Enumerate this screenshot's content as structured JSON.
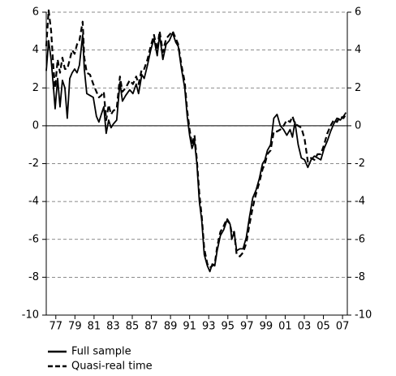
{
  "chart_data": {
    "type": "line",
    "x": [
      1976.0,
      1976.25,
      1976.51,
      1976.76,
      1976.93,
      1977.19,
      1977.44,
      1977.69,
      1977.95,
      1978.2,
      1978.46,
      1978.71,
      1978.97,
      1979.22,
      1979.47,
      1979.81,
      1979.98,
      1980.24,
      1980.58,
      1980.92,
      1981.25,
      1981.51,
      1981.76,
      1982.02,
      1982.27,
      1982.53,
      1982.78,
      1983.03,
      1983.37,
      1983.71,
      1983.97,
      1984.31,
      1984.73,
      1985.07,
      1985.41,
      1985.66,
      1986.0,
      1986.25,
      1986.59,
      1986.93,
      1987.27,
      1987.61,
      1987.86,
      1988.2,
      1988.54,
      1988.88,
      1989.22,
      1989.56,
      1989.81,
      1990.15,
      1990.49,
      1990.75,
      1991.0,
      1991.25,
      1991.51,
      1991.76,
      1992.02,
      1992.27,
      1992.53,
      1992.86,
      1993.12,
      1993.37,
      1993.63,
      1993.88,
      1994.22,
      1994.56,
      1994.9,
      1995.24,
      1995.41,
      1995.66,
      1995.92,
      1996.25,
      1996.59,
      1996.93,
      1997.27,
      1997.61,
      1997.95,
      1998.29,
      1998.63,
      1998.88,
      1999.14,
      1999.47,
      1999.81,
      2000.15,
      2000.49,
      2000.83,
      2001.17,
      2001.51,
      2001.76,
      2002.02,
      2002.36,
      2002.69,
      2003.03,
      2003.37,
      2003.71,
      2004.05,
      2004.39,
      2004.73,
      2005.07,
      2005.41,
      2005.75,
      2006.08,
      2006.42,
      2006.76,
      2007.1,
      2007.36
    ],
    "series": [
      {
        "name": "Full sample",
        "color": "#000000",
        "line_style": "solid",
        "values": [
          2.9,
          4.5,
          3.5,
          2.0,
          0.9,
          2.5,
          1.0,
          2.4,
          2.0,
          0.4,
          2.5,
          2.8,
          3.0,
          2.8,
          3.2,
          4.8,
          3.0,
          1.7,
          1.6,
          1.5,
          0.5,
          0.2,
          0.6,
          1.0,
          -0.4,
          0.3,
          -0.1,
          0.1,
          0.3,
          2.3,
          1.3,
          1.6,
          1.9,
          1.7,
          2.2,
          1.7,
          2.7,
          2.5,
          3.2,
          4.0,
          4.6,
          3.7,
          4.8,
          3.5,
          4.3,
          4.5,
          4.9,
          4.4,
          4.2,
          3.0,
          2.0,
          0.5,
          -0.5,
          -1.2,
          -0.8,
          -2.0,
          -4.0,
          -5.0,
          -6.8,
          -7.4,
          -7.7,
          -7.3,
          -7.4,
          -6.6,
          -5.8,
          -5.5,
          -5.0,
          -5.2,
          -6.0,
          -5.6,
          -6.6,
          -6.5,
          -6.5,
          -5.9,
          -4.8,
          -3.8,
          -3.4,
          -2.8,
          -2.0,
          -1.8,
          -1.3,
          -1.0,
          0.4,
          0.6,
          0.0,
          -0.2,
          -0.5,
          -0.2,
          -0.6,
          0.2,
          -1.0,
          -1.7,
          -1.8,
          -2.2,
          -1.8,
          -1.6,
          -1.7,
          -1.8,
          -1.2,
          -0.8,
          -0.3,
          0.1,
          0.4,
          0.3,
          0.5,
          0.7
        ]
      },
      {
        "name": "Quasi-real time",
        "color": "#000000",
        "line_style": "dashed",
        "values": [
          4.2,
          6.1,
          5.0,
          3.0,
          2.0,
          3.5,
          2.8,
          3.6,
          3.0,
          3.0,
          3.5,
          4.0,
          3.8,
          4.3,
          4.5,
          5.5,
          3.6,
          2.8,
          2.7,
          2.2,
          1.8,
          1.5,
          1.6,
          1.8,
          0.3,
          1.1,
          0.6,
          0.8,
          0.9,
          2.6,
          1.8,
          2.0,
          2.4,
          2.2,
          2.6,
          2.2,
          3.0,
          3.0,
          3.5,
          4.2,
          4.8,
          4.0,
          5.0,
          3.9,
          4.6,
          4.8,
          5.0,
          4.6,
          4.3,
          3.2,
          2.3,
          0.8,
          -0.2,
          -1.0,
          -0.5,
          -1.8,
          -3.6,
          -4.8,
          -6.5,
          -7.3,
          -7.5,
          -7.4,
          -7.3,
          -6.4,
          -5.6,
          -5.3,
          -4.9,
          -5.2,
          -5.7,
          -5.6,
          -6.8,
          -6.9,
          -6.7,
          -6.2,
          -5.2,
          -4.3,
          -3.6,
          -3.0,
          -2.3,
          -2.0,
          -1.5,
          -1.3,
          -0.3,
          -0.3,
          -0.2,
          0.0,
          0.3,
          0.2,
          0.5,
          0.1,
          0.0,
          -0.1,
          -0.7,
          -1.9,
          -1.7,
          -1.8,
          -1.5,
          -1.5,
          -1.0,
          -0.4,
          0.0,
          0.3,
          0.2,
          0.5,
          0.4,
          0.6
        ]
      }
    ],
    "xlim": [
      1976,
      2007.5
    ],
    "xticks": [
      {
        "value": 1977,
        "label": "77"
      },
      {
        "value": 1979,
        "label": "79"
      },
      {
        "value": 1981,
        "label": "81"
      },
      {
        "value": 1983,
        "label": "83"
      },
      {
        "value": 1985,
        "label": "85"
      },
      {
        "value": 1987,
        "label": "87"
      },
      {
        "value": 1989,
        "label": "89"
      },
      {
        "value": 1991,
        "label": "91"
      },
      {
        "value": 1993,
        "label": "93"
      },
      {
        "value": 1995,
        "label": "95"
      },
      {
        "value": 1997,
        "label": "97"
      },
      {
        "value": 1999,
        "label": "99"
      },
      {
        "value": 2001,
        "label": "01"
      },
      {
        "value": 2003,
        "label": "03"
      },
      {
        "value": 2005,
        "label": "05"
      },
      {
        "value": 2007,
        "label": "07"
      }
    ],
    "ylim": [
      -10,
      6
    ],
    "yticks": [
      -10,
      -8,
      -6,
      -4,
      -2,
      0,
      2,
      4,
      6
    ],
    "grid": true,
    "legend": "bottom-left"
  }
}
